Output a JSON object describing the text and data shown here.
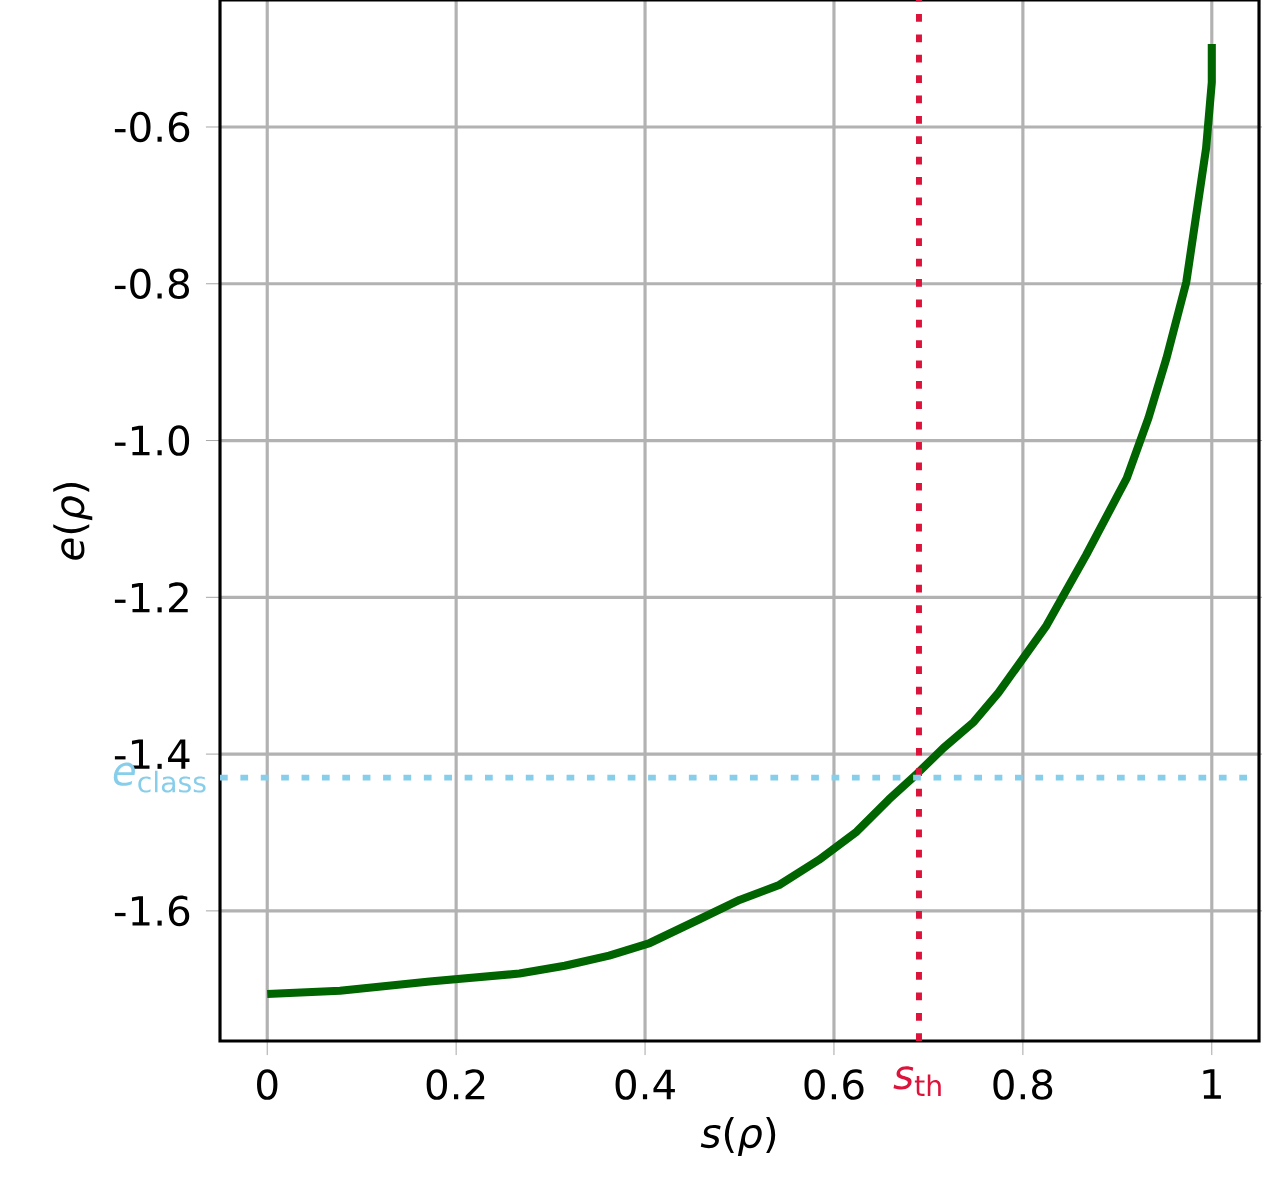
{
  "chart_data": {
    "type": "line",
    "xlabel": "*s*(*ρ*)",
    "ylabel": "*e*(*ρ*)",
    "x": [
      0,
      0.077,
      0.172,
      0.267,
      0.315,
      0.362,
      0.405,
      0.457,
      0.5,
      0.542,
      0.584,
      0.624,
      0.658,
      0.688,
      0.716,
      0.748,
      0.774,
      0.825,
      0.867,
      0.91,
      0.933,
      0.952,
      0.973,
      0.994,
      1.0,
      1.0
    ],
    "series": [
      {
        "color": "#006400",
        "values": [
          -1.706,
          -1.702,
          -1.69,
          -1.68,
          -1.67,
          -1.657,
          -1.641,
          -1.611,
          -1.586,
          -1.567,
          -1.535,
          -1.499,
          -1.458,
          -1.425,
          -1.392,
          -1.359,
          -1.322,
          -1.236,
          -1.146,
          -1.048,
          -0.971,
          -0.895,
          -0.798,
          -0.627,
          -0.543,
          -0.494
        ]
      }
    ],
    "xlim": [
      -0.05,
      1.05
    ],
    "ylim": [
      -1.766,
      -0.438
    ],
    "xticks": [
      0,
      0.2,
      0.4,
      0.6,
      0.8,
      1
    ],
    "yticks": [
      -1.6,
      -1.4,
      -1.2,
      {
        "value": -1.0,
        "label": "-1.0"
      },
      -0.8,
      -0.6
    ],
    "grid": true,
    "marker": "none",
    "ref_lines": [
      {
        "axis": "x",
        "value": 0.69,
        "label": "*s*$_{th}$",
        "color": "#dc143c",
        "line_style": "dotted"
      },
      {
        "axis": "y",
        "value": -1.43,
        "label": "*e*$_{class}$",
        "color": "#87ceeb",
        "line_style": "dotted"
      }
    ]
  }
}
